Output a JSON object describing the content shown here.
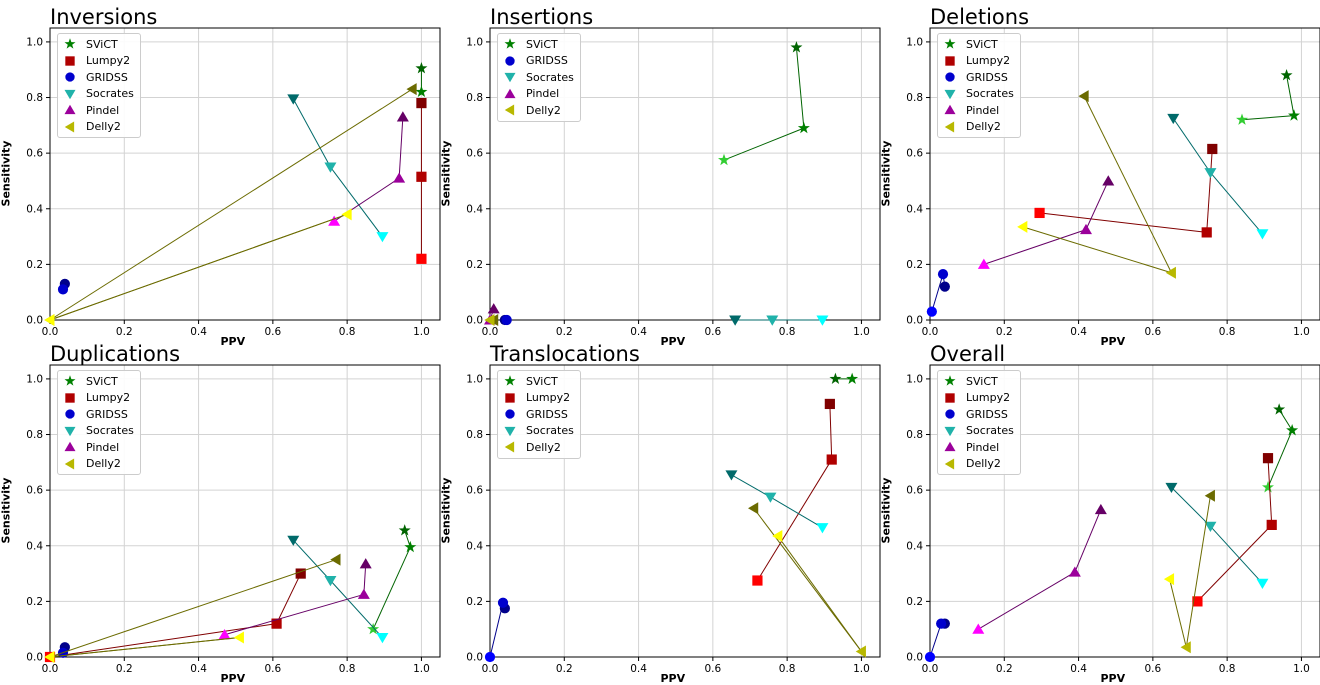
{
  "axes": {
    "xlabel": "PPV",
    "ylabel": "Sensitivity"
  },
  "legend_entries": {
    "SViCT": "SViCT",
    "Lumpy2": "Lumpy2",
    "GRIDSS": "GRIDSS",
    "Socrates": "Socrates",
    "Pindel": "Pindel",
    "Delly2": "Delly2"
  },
  "styles": {
    "SViCT": {
      "marker": "star",
      "colors": [
        "#006400",
        "#008000",
        "#32cd32"
      ]
    },
    "Lumpy2": {
      "marker": "square",
      "colors": [
        "#800000",
        "#b00000",
        "#ff0000"
      ]
    },
    "GRIDSS": {
      "marker": "circle",
      "colors": [
        "#00008b",
        "#0000cd",
        "#0000ff"
      ]
    },
    "Socrates": {
      "marker": "tri_down",
      "colors": [
        "#006a6a",
        "#20b2aa",
        "#00ffff"
      ]
    },
    "Pindel": {
      "marker": "tri_up",
      "colors": [
        "#660066",
        "#9b009b",
        "#ff00ff"
      ]
    },
    "Delly2": {
      "marker": "tri_left",
      "colors": [
        "#6b6b00",
        "#b8b800",
        "#ffff00"
      ]
    }
  },
  "chart_data": [
    {
      "type": "scatter",
      "title": "Inversions",
      "xlabel": "PPV",
      "ylabel": "Sensitivity",
      "xlim": [
        0,
        1.05
      ],
      "ylim": [
        0,
        1.05
      ],
      "xticks": [
        "0.0",
        "0.2",
        "0.4",
        "0.6",
        "0.8",
        "1.0"
      ],
      "yticks": [
        "0.0",
        "0.2",
        "0.4",
        "0.6",
        "0.8",
        "1.0"
      ],
      "grid": true,
      "legend": "top-left",
      "legend_order": [
        "SViCT",
        "Lumpy2",
        "GRIDSS",
        "Socrates",
        "Pindel",
        "Delly2"
      ],
      "series": [
        {
          "tool": "SViCT",
          "points": [
            [
              1.0,
              0.905
            ],
            [
              1.0,
              0.82
            ]
          ]
        },
        {
          "tool": "Lumpy2",
          "points": [
            [
              1.0,
              0.78
            ],
            [
              1.0,
              0.515
            ],
            [
              1.0,
              0.22
            ]
          ]
        },
        {
          "tool": "GRIDSS",
          "points": [
            [
              0.04,
              0.13
            ],
            [
              0.035,
              0.11
            ]
          ]
        },
        {
          "tool": "Socrates",
          "points": [
            [
              0.655,
              0.795
            ],
            [
              0.755,
              0.55
            ],
            [
              0.895,
              0.3
            ]
          ]
        },
        {
          "tool": "Pindel",
          "points": [
            [
              0.95,
              0.73
            ],
            [
              0.94,
              0.51
            ],
            [
              0.765,
              0.355
            ]
          ]
        },
        {
          "tool": "Delly2",
          "points": [
            [
              0.975,
              0.83
            ],
            [
              0.0,
              0.0
            ],
            [
              0.8,
              0.38
            ],
            [
              0.0,
              0.0
            ]
          ]
        }
      ]
    },
    {
      "type": "scatter",
      "title": "Insertions",
      "xlabel": "PPV",
      "ylabel": "Sensitivity",
      "xlim": [
        0,
        1.05
      ],
      "ylim": [
        0,
        1.05
      ],
      "xticks": [
        "0.0",
        "0.2",
        "0.4",
        "0.6",
        "0.8",
        "1.0"
      ],
      "yticks": [
        "0.0",
        "0.2",
        "0.4",
        "0.6",
        "0.8",
        "1.0"
      ],
      "grid": true,
      "legend": "top-left",
      "legend_order": [
        "SViCT",
        "GRIDSS",
        "Socrates",
        "Pindel",
        "Delly2"
      ],
      "series": [
        {
          "tool": "SViCT",
          "points": [
            [
              0.825,
              0.98
            ],
            [
              0.845,
              0.69
            ],
            [
              0.63,
              0.575
            ]
          ]
        },
        {
          "tool": "GRIDSS",
          "points": [
            [
              0.04,
              0.0
            ],
            [
              0.045,
              0.0
            ]
          ]
        },
        {
          "tool": "Socrates",
          "points": [
            [
              0.66,
              0.0
            ],
            [
              0.76,
              0.0
            ],
            [
              0.895,
              0.0
            ]
          ]
        },
        {
          "tool": "Pindel",
          "points": [
            [
              0.01,
              0.04
            ],
            [
              0.0,
              0.0
            ]
          ]
        },
        {
          "tool": "Delly2",
          "points": [
            [
              0.01,
              0.0
            ],
            [
              0.0,
              0.0
            ]
          ]
        }
      ]
    },
    {
      "type": "scatter",
      "title": "Deletions",
      "xlabel": "PPV",
      "ylabel": "Sensitivity",
      "xlim": [
        0,
        1.05
      ],
      "ylim": [
        0,
        1.05
      ],
      "xticks": [
        "0.0",
        "0.2",
        "0.4",
        "0.6",
        "0.8",
        "1.0"
      ],
      "yticks": [
        "0.0",
        "0.2",
        "0.4",
        "0.6",
        "0.8",
        "1.0"
      ],
      "grid": true,
      "legend": "top-left",
      "legend_order": [
        "SViCT",
        "Lumpy2",
        "GRIDSS",
        "Socrates",
        "Pindel",
        "Delly2"
      ],
      "series": [
        {
          "tool": "SViCT",
          "points": [
            [
              0.96,
              0.88
            ],
            [
              0.98,
              0.735
            ],
            [
              0.84,
              0.72
            ]
          ]
        },
        {
          "tool": "Lumpy2",
          "points": [
            [
              0.76,
              0.615
            ],
            [
              0.745,
              0.315
            ],
            [
              0.295,
              0.385
            ]
          ]
        },
        {
          "tool": "GRIDSS",
          "points": [
            [
              0.04,
              0.12
            ],
            [
              0.035,
              0.165
            ],
            [
              0.005,
              0.03
            ]
          ]
        },
        {
          "tool": "Socrates",
          "points": [
            [
              0.655,
              0.725
            ],
            [
              0.755,
              0.53
            ],
            [
              0.895,
              0.31
            ]
          ]
        },
        {
          "tool": "Pindel",
          "points": [
            [
              0.48,
              0.5
            ],
            [
              0.42,
              0.325
            ],
            [
              0.145,
              0.2
            ]
          ]
        },
        {
          "tool": "Delly2",
          "points": [
            [
              0.415,
              0.805
            ],
            [
              0.65,
              0.17
            ],
            [
              0.25,
              0.335
            ]
          ]
        }
      ]
    },
    {
      "type": "scatter",
      "title": "Duplications",
      "xlabel": "PPV",
      "ylabel": "Sensitivity",
      "xlim": [
        0,
        1.05
      ],
      "ylim": [
        0,
        1.05
      ],
      "xticks": [
        "0.0",
        "0.2",
        "0.4",
        "0.6",
        "0.8",
        "1.0"
      ],
      "yticks": [
        "0.0",
        "0.2",
        "0.4",
        "0.6",
        "0.8",
        "1.0"
      ],
      "grid": true,
      "legend": "top-left",
      "legend_order": [
        "SViCT",
        "Lumpy2",
        "GRIDSS",
        "Socrates",
        "Pindel",
        "Delly2"
      ],
      "series": [
        {
          "tool": "SViCT",
          "points": [
            [
              0.955,
              0.455
            ],
            [
              0.97,
              0.395
            ],
            [
              0.87,
              0.1
            ]
          ]
        },
        {
          "tool": "Lumpy2",
          "points": [
            [
              0.675,
              0.3
            ],
            [
              0.61,
              0.12
            ],
            [
              0.0,
              0.0
            ]
          ]
        },
        {
          "tool": "GRIDSS",
          "points": [
            [
              0.04,
              0.035
            ],
            [
              0.035,
              0.015
            ]
          ]
        },
        {
          "tool": "Socrates",
          "points": [
            [
              0.655,
              0.42
            ],
            [
              0.755,
              0.275
            ],
            [
              0.895,
              0.07
            ]
          ]
        },
        {
          "tool": "Pindel",
          "points": [
            [
              0.85,
              0.335
            ],
            [
              0.845,
              0.225
            ],
            [
              0.47,
              0.08
            ]
          ]
        },
        {
          "tool": "Delly2",
          "points": [
            [
              0.77,
              0.35
            ],
            [
              0.0,
              0.0
            ],
            [
              0.51,
              0.07
            ],
            [
              0.0,
              0.0
            ]
          ]
        }
      ]
    },
    {
      "type": "scatter",
      "title": "Translocations",
      "xlabel": "PPV",
      "ylabel": "Sensitivity",
      "xlim": [
        0,
        1.05
      ],
      "ylim": [
        0,
        1.05
      ],
      "xticks": [
        "0.0",
        "0.2",
        "0.4",
        "0.6",
        "0.8",
        "1.0"
      ],
      "yticks": [
        "0.0",
        "0.2",
        "0.4",
        "0.6",
        "0.8",
        "1.0"
      ],
      "grid": true,
      "legend": "top-left",
      "legend_order": [
        "SViCT",
        "Lumpy2",
        "GRIDSS",
        "Socrates",
        "Delly2"
      ],
      "series": [
        {
          "tool": "SViCT",
          "points": [
            [
              0.93,
              1.0
            ],
            [
              0.975,
              1.0
            ]
          ]
        },
        {
          "tool": "Lumpy2",
          "points": [
            [
              0.915,
              0.91
            ],
            [
              0.92,
              0.71
            ],
            [
              0.72,
              0.275
            ]
          ]
        },
        {
          "tool": "GRIDSS",
          "points": [
            [
              0.04,
              0.175
            ],
            [
              0.035,
              0.195
            ],
            [
              0.0,
              0.0
            ]
          ]
        },
        {
          "tool": "Socrates",
          "points": [
            [
              0.65,
              0.655
            ],
            [
              0.755,
              0.575
            ],
            [
              0.895,
              0.465
            ]
          ]
        },
        {
          "tool": "Delly2",
          "points": [
            [
              0.71,
              0.535
            ],
            [
              1.0,
              0.02
            ],
            [
              0.775,
              0.435
            ]
          ]
        }
      ]
    },
    {
      "type": "scatter",
      "title": "Overall",
      "xlabel": "PPV",
      "ylabel": "Sensitivity",
      "xlim": [
        0,
        1.05
      ],
      "ylim": [
        0,
        1.05
      ],
      "xticks": [
        "0.0",
        "0.2",
        "0.4",
        "0.6",
        "0.8",
        "1.0"
      ],
      "yticks": [
        "0.0",
        "0.2",
        "0.4",
        "0.6",
        "0.8",
        "1.0"
      ],
      "grid": true,
      "legend": "top-left",
      "legend_order": [
        "SViCT",
        "Lumpy2",
        "GRIDSS",
        "Socrates",
        "Pindel",
        "Delly2"
      ],
      "series": [
        {
          "tool": "SViCT",
          "points": [
            [
              0.94,
              0.89
            ],
            [
              0.975,
              0.815
            ],
            [
              0.91,
              0.61
            ]
          ]
        },
        {
          "tool": "Lumpy2",
          "points": [
            [
              0.91,
              0.715
            ],
            [
              0.92,
              0.475
            ],
            [
              0.72,
              0.2
            ]
          ]
        },
        {
          "tool": "GRIDSS",
          "points": [
            [
              0.04,
              0.12
            ],
            [
              0.03,
              0.12
            ],
            [
              0.0,
              0.0
            ]
          ]
        },
        {
          "tool": "Socrates",
          "points": [
            [
              0.65,
              0.61
            ],
            [
              0.755,
              0.47
            ],
            [
              0.895,
              0.265
            ]
          ]
        },
        {
          "tool": "Pindel",
          "points": [
            [
              0.46,
              0.53
            ],
            [
              0.39,
              0.305
            ],
            [
              0.13,
              0.1
            ]
          ]
        },
        {
          "tool": "Delly2",
          "points": [
            [
              0.755,
              0.58
            ],
            [
              0.69,
              0.035
            ],
            [
              0.645,
              0.28
            ]
          ]
        }
      ]
    }
  ]
}
